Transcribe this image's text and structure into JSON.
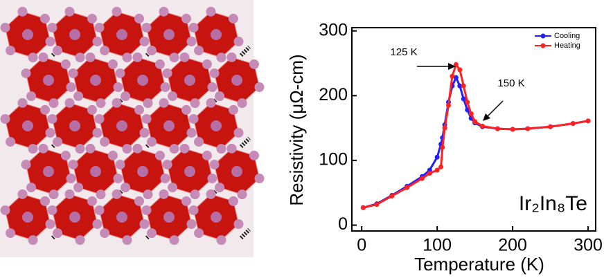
{
  "chart_data": {
    "type": "line",
    "xlabel": "Temperature (K)",
    "ylabel": "Resistivity (μΩ-cm)",
    "annotations": [
      "125 K",
      "150 K",
      "Ir₂In₈Te"
    ],
    "x": [
      2,
      20,
      40,
      60,
      80,
      90,
      100,
      105,
      107,
      110,
      115,
      120,
      125,
      130,
      135,
      140,
      145,
      150,
      160,
      180,
      200,
      220,
      250,
      280,
      300
    ],
    "series": [
      {
        "name": "Cooling",
        "color": "#1f1fff",
        "values": [
          27,
          33,
          46,
          60,
          75,
          85,
          105,
          125,
          135,
          155,
          190,
          215,
          228,
          215,
          195,
          178,
          165,
          158,
          152,
          149,
          148,
          149,
          152,
          157,
          161
        ]
      },
      {
        "name": "Heating",
        "color": "#ff2020",
        "values": [
          27,
          32,
          45,
          58,
          72,
          80,
          85,
          90,
          120,
          150,
          185,
          230,
          248,
          240,
          215,
          190,
          172,
          160,
          153,
          149,
          148,
          149,
          152,
          157,
          161
        ]
      }
    ],
    "xlim": [
      -13,
      310
    ],
    "ylim": [
      -9,
      305
    ],
    "xticks": [
      0,
      100,
      200,
      300
    ],
    "yticks": [
      0,
      100,
      200,
      300
    ],
    "legend": "upper-right"
  }
}
